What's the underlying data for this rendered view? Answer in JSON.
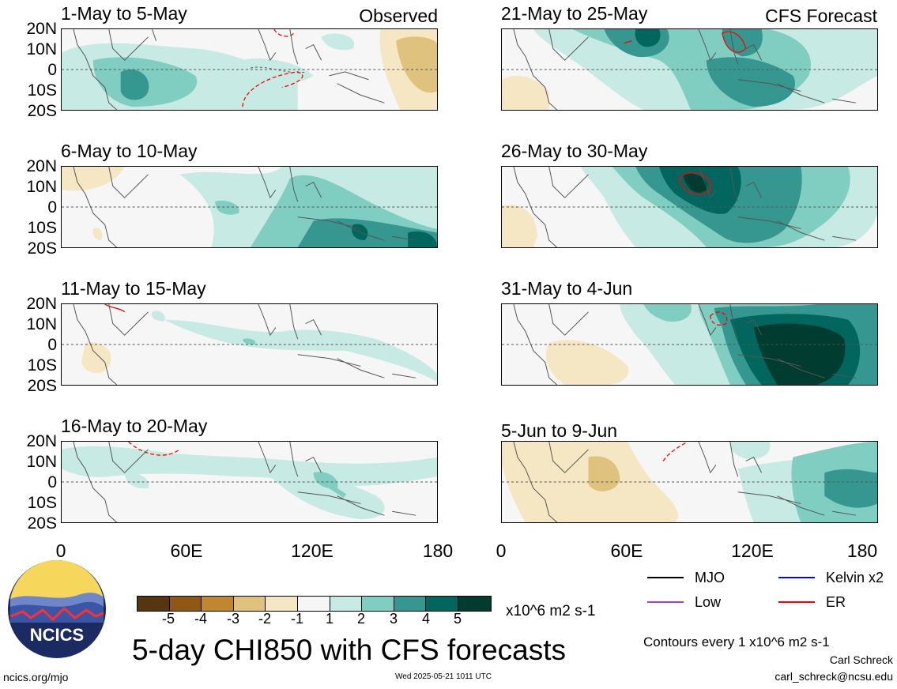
{
  "figure": {
    "main_title": "5-day CHI850 with CFS forecasts",
    "units": "x10^6 m2 s-1",
    "contour_note": "Contours every 1 x10^6 m2 s-1",
    "author": "Carl Schreck",
    "email": "carl_schreck@ncsu.edu",
    "website": "ncics.org/mjo",
    "timestamp": "Wed 2025-05-21 1011 UTC",
    "logo_text": "NCICS"
  },
  "columns": {
    "left_tag": "Observed",
    "right_tag": "CFS Forecast"
  },
  "panels_left": [
    {
      "title": "1-May to 5-May"
    },
    {
      "title": "6-May to 10-May"
    },
    {
      "title": "11-May to 15-May"
    },
    {
      "title": "16-May to 20-May"
    }
  ],
  "panels_right": [
    {
      "title": "21-May to 25-May"
    },
    {
      "title": "26-May to 30-May"
    },
    {
      "title": "31-May to 4-Jun"
    },
    {
      "title": "5-Jun to 9-Jun"
    }
  ],
  "lat_labels": [
    "20N",
    "10N",
    "0",
    "10S",
    "20S"
  ],
  "lon_labels": [
    "0",
    "60E",
    "120E",
    "180"
  ],
  "colorbar": {
    "labels": [
      "-5",
      "-4",
      "-3",
      "-2",
      "-1",
      "1",
      "2",
      "3",
      "4",
      "5"
    ],
    "colors": [
      "#553610",
      "#8f5814",
      "#c1872f",
      "#dfc27d",
      "#f5e7c3",
      "#f6f6f6",
      "#c7eae4",
      "#80cdc1",
      "#35978f",
      "#01665e",
      "#003c30"
    ]
  },
  "legend": [
    {
      "label": "MJO",
      "color": "#000000"
    },
    {
      "label": "Kelvin x2",
      "color": "#0000ff"
    },
    {
      "label": "Low",
      "color": "#a040e0"
    },
    {
      "label": "ER",
      "color": "#ff0000"
    }
  ]
}
